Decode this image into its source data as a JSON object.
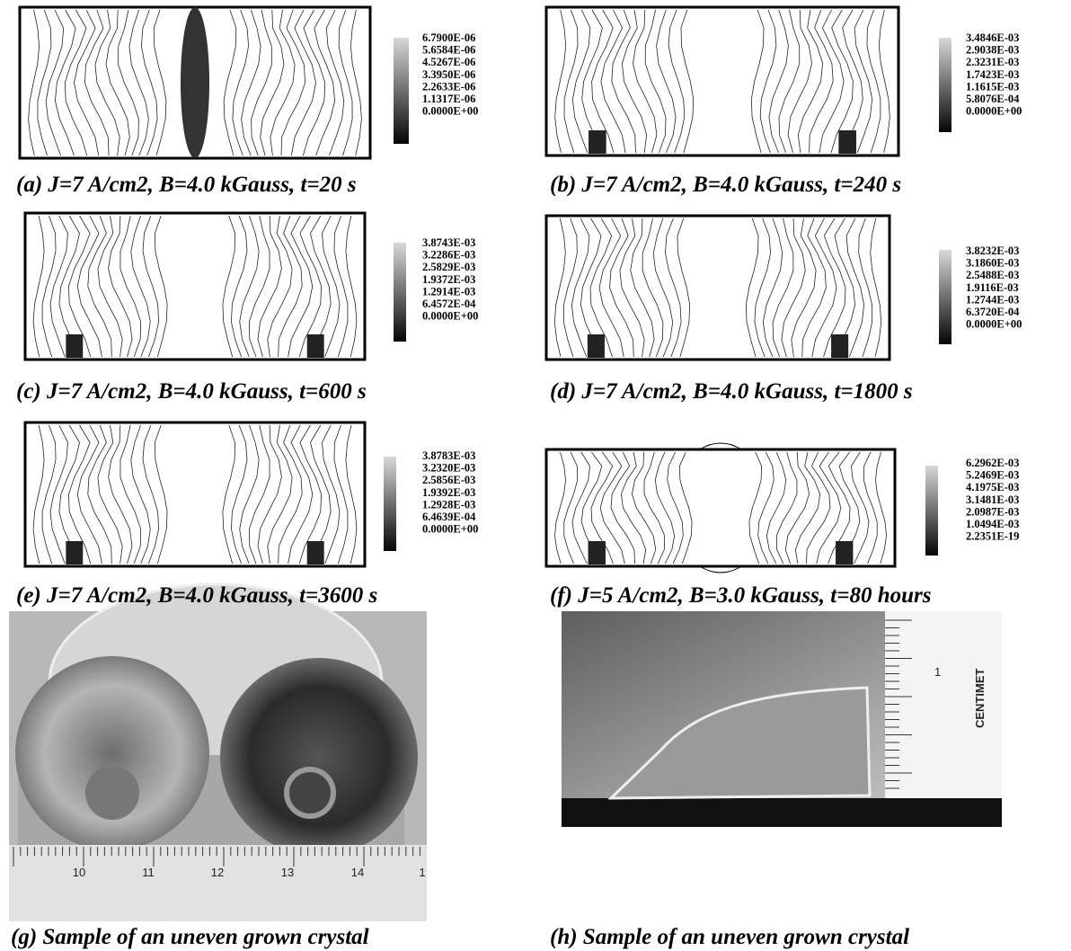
{
  "panels": [
    {
      "caption": "(a) J=7 A/cm2, B=4.0 kGauss, t=20 s",
      "legend": [
        "6.7900E-06",
        "5.6584E-06",
        "4.5267E-06",
        "3.3950E-06",
        "2.2633E-06",
        "1.1317E-06",
        "0.0000E+00"
      ]
    },
    {
      "caption": "(b) J=7 A/cm2, B=4.0 kGauss, t=240 s",
      "legend": [
        "3.4846E-03",
        "2.9038E-03",
        "2.3231E-03",
        "1.7423E-03",
        "1.1615E-03",
        "5.8076E-04",
        "0.0000E+00"
      ]
    },
    {
      "caption": "(c) J=7 A/cm2, B=4.0 kGauss, t=600 s",
      "legend": [
        "3.8743E-03",
        "3.2286E-03",
        "2.5829E-03",
        "1.9372E-03",
        "1.2914E-03",
        "6.4572E-04",
        "0.0000E+00"
      ]
    },
    {
      "caption": "(d) J=7 A/cm2, B=4.0 kGauss, t=1800 s",
      "legend": [
        "3.8232E-03",
        "3.1860E-03",
        "2.5488E-03",
        "1.9116E-03",
        "1.2744E-03",
        "6.3720E-04",
        "0.0000E+00"
      ]
    },
    {
      "caption": "(e) J=7 A/cm2, B=4.0 kGauss, t=3600 s",
      "legend": [
        "3.8783E-03",
        "3.2320E-03",
        "2.5856E-03",
        "1.9392E-03",
        "1.2928E-03",
        "6.4639E-04",
        "0.0000E+00"
      ]
    },
    {
      "caption": "(f) J=5 A/cm2, B=3.0 kGauss, t=80 hours",
      "legend": [
        "6.2962E-03",
        "5.2469E-03",
        "4.1975E-03",
        "3.1481E-03",
        "2.0987E-03",
        "1.0494E-03",
        "2.2351E-19"
      ]
    }
  ],
  "photos": [
    {
      "caption": "(g) Sample of an uneven grown crystal",
      "ruler_labels": [
        "10",
        "11",
        "12",
        "13",
        "14",
        "1"
      ]
    },
    {
      "caption": "(h) Sample of an uneven grown crystal",
      "ruler_labels": [
        "CENTIMET",
        "1"
      ]
    }
  ]
}
